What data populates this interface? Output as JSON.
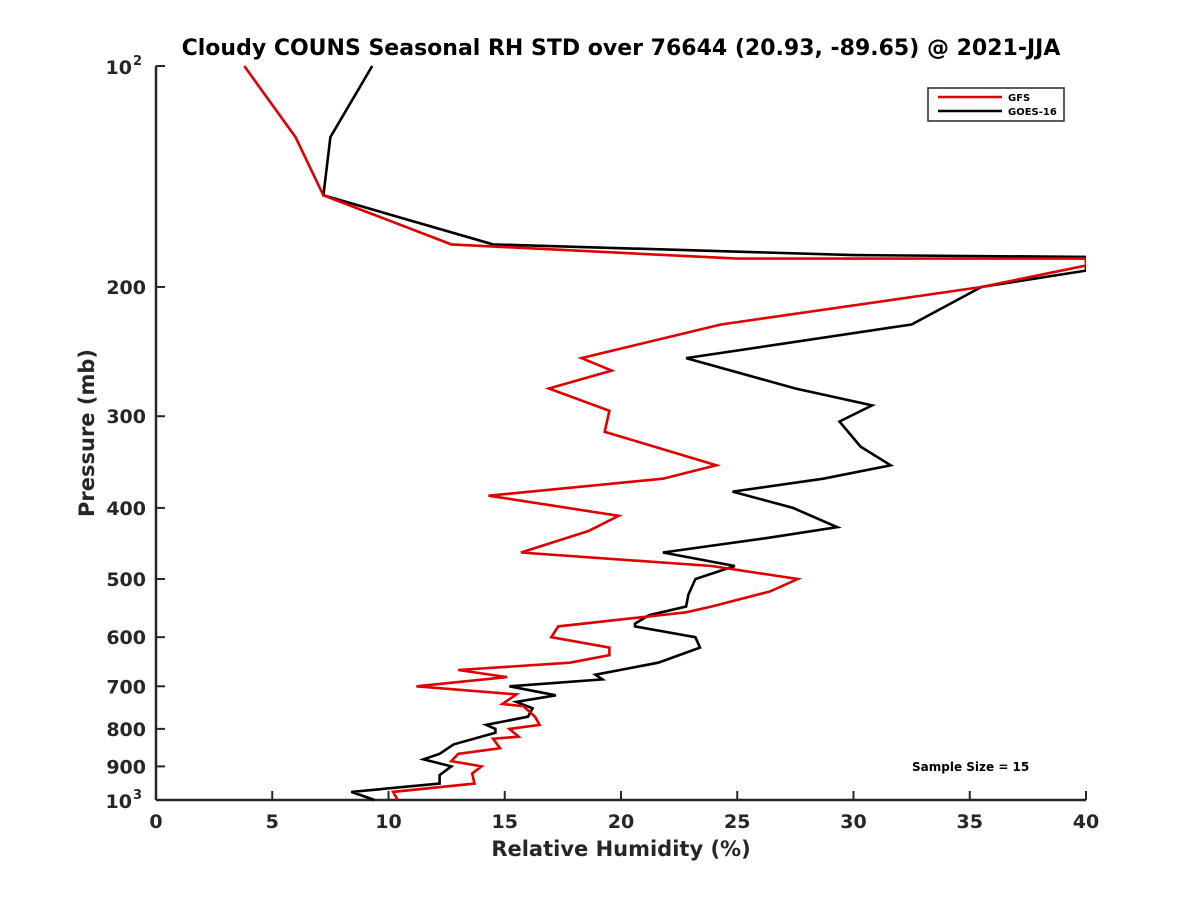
{
  "chart_data": {
    "type": "line",
    "title": "Cloudy COUNS Seasonal RH STD over 76644 (20.93, -89.65) @ 2021-JJA",
    "xlabel": "Relative Humidity (%)",
    "ylabel": "Pressure (mb)",
    "xlim": [
      0,
      40
    ],
    "ylim": [
      100,
      1000
    ],
    "yscale": "log",
    "y_reversed": true,
    "grid": false,
    "x_ticks": [
      0,
      5,
      10,
      15,
      20,
      25,
      30,
      35,
      40
    ],
    "x_tick_labels": [
      "0",
      "5",
      "10",
      "15",
      "20",
      "25",
      "30",
      "35",
      "40"
    ],
    "y_ticks": [
      {
        "value": 100,
        "base": "10",
        "exp": "2"
      },
      {
        "value": 200,
        "label": "200"
      },
      {
        "value": 300,
        "label": "300"
      },
      {
        "value": 400,
        "label": "400"
      },
      {
        "value": 500,
        "label": "500"
      },
      {
        "value": 600,
        "label": "600"
      },
      {
        "value": 700,
        "label": "700"
      },
      {
        "value": 800,
        "label": "800"
      },
      {
        "value": 900,
        "label": "900"
      },
      {
        "value": 1000,
        "base": "10",
        "exp": "3"
      }
    ],
    "legend_location": "top-right",
    "annotation": "Sample Size = 15",
    "series": [
      {
        "name": "GFS",
        "color": "#e00000",
        "points": [
          [
            3.8,
            100
          ],
          [
            6.0,
            125
          ],
          [
            7.2,
            150
          ],
          [
            12.7,
            175
          ],
          [
            25.0,
            183
          ],
          [
            40.0,
            183
          ],
          [
            40.0,
            187
          ],
          [
            35.5,
            200
          ],
          [
            24.3,
            225
          ],
          [
            18.3,
            250
          ],
          [
            19.6,
            260
          ],
          [
            16.9,
            275
          ],
          [
            19.5,
            295
          ],
          [
            19.3,
            315
          ],
          [
            24.1,
            350
          ],
          [
            21.8,
            365
          ],
          [
            14.3,
            385
          ],
          [
            19.9,
            410
          ],
          [
            18.6,
            430
          ],
          [
            15.7,
            460
          ],
          [
            23.9,
            480
          ],
          [
            27.6,
            500
          ],
          [
            26.4,
            520
          ],
          [
            23.9,
            545
          ],
          [
            22.8,
            555
          ],
          [
            17.3,
            580
          ],
          [
            17.0,
            600
          ],
          [
            19.5,
            620
          ],
          [
            19.5,
            635
          ],
          [
            17.8,
            650
          ],
          [
            13.0,
            665
          ],
          [
            15.1,
            680
          ],
          [
            11.2,
            700
          ],
          [
            15.5,
            718
          ],
          [
            14.9,
            740
          ],
          [
            15.8,
            745
          ],
          [
            16.3,
            770
          ],
          [
            16.5,
            790
          ],
          [
            15.2,
            800
          ],
          [
            15.6,
            820
          ],
          [
            14.5,
            825
          ],
          [
            14.8,
            850
          ],
          [
            13.0,
            865
          ],
          [
            12.7,
            885
          ],
          [
            14.0,
            900
          ],
          [
            13.6,
            920
          ],
          [
            13.7,
            950
          ],
          [
            10.2,
            975
          ],
          [
            10.4,
            1000
          ]
        ]
      },
      {
        "name": "GOES-16",
        "color": "#000000",
        "points": [
          [
            9.3,
            100
          ],
          [
            7.5,
            125
          ],
          [
            7.2,
            150
          ],
          [
            14.5,
            175
          ],
          [
            30.0,
            181
          ],
          [
            40.0,
            182
          ],
          [
            40.0,
            190
          ],
          [
            35.5,
            200
          ],
          [
            32.5,
            225
          ],
          [
            22.8,
            250
          ],
          [
            27.5,
            275
          ],
          [
            30.8,
            290
          ],
          [
            29.4,
            305
          ],
          [
            30.3,
            330
          ],
          [
            31.6,
            350
          ],
          [
            28.7,
            365
          ],
          [
            24.8,
            380
          ],
          [
            27.4,
            400
          ],
          [
            29.3,
            425
          ],
          [
            26.2,
            440
          ],
          [
            21.8,
            460
          ],
          [
            24.9,
            480
          ],
          [
            23.2,
            500
          ],
          [
            22.9,
            525
          ],
          [
            22.8,
            545
          ],
          [
            21.2,
            560
          ],
          [
            20.6,
            575
          ],
          [
            20.6,
            580
          ],
          [
            23.2,
            600
          ],
          [
            23.4,
            620
          ],
          [
            21.6,
            650
          ],
          [
            18.9,
            675
          ],
          [
            19.2,
            685
          ],
          [
            15.2,
            700
          ],
          [
            17.2,
            720
          ],
          [
            15.5,
            735
          ],
          [
            16.2,
            750
          ],
          [
            16.0,
            770
          ],
          [
            14.2,
            790
          ],
          [
            14.6,
            800
          ],
          [
            14.6,
            810
          ],
          [
            12.8,
            840
          ],
          [
            12.2,
            865
          ],
          [
            11.5,
            880
          ],
          [
            12.7,
            900
          ],
          [
            12.2,
            925
          ],
          [
            12.2,
            950
          ],
          [
            8.4,
            975
          ],
          [
            9.4,
            1000
          ]
        ]
      }
    ]
  }
}
